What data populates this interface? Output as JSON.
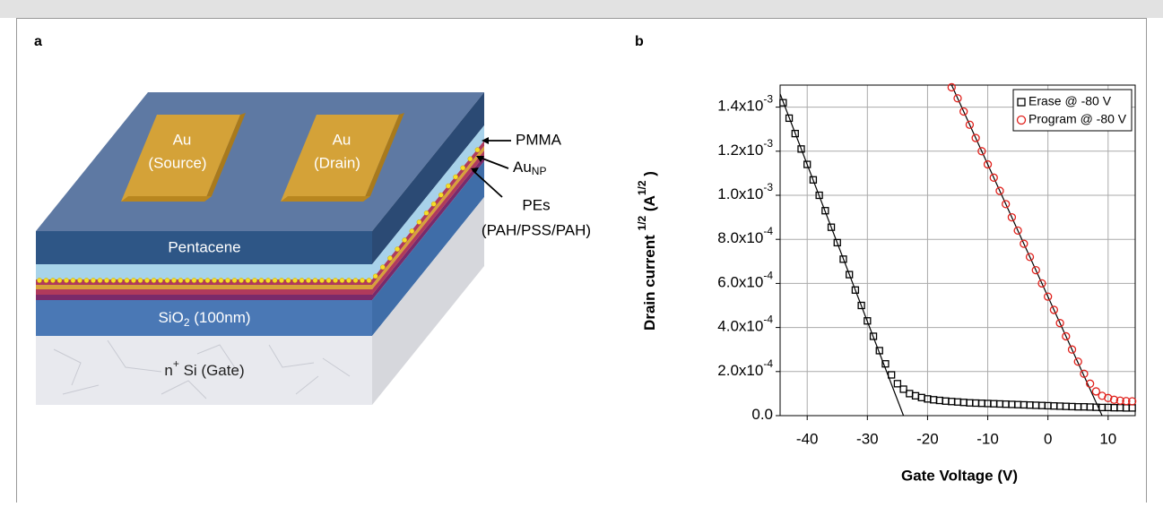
{
  "diagram": {
    "panel_label": "a",
    "source": [
      "Au",
      "(Source)"
    ],
    "drain": [
      "Au",
      "(Drain)"
    ],
    "pentacene": "Pentacene",
    "sio2": {
      "text": "SiO",
      "sub": "2",
      "rest": " (100nm)"
    },
    "gate": {
      "text": "n",
      "sup": "+",
      "rest": " Si (Gate)"
    },
    "pmma": "PMMA",
    "au_np": {
      "text": "Au",
      "sub": "NP"
    },
    "pes": [
      "PEs",
      "(PAH/PSS/PAH)"
    ]
  },
  "chart_data": {
    "type": "scatter",
    "panel_label": "b",
    "xlabel": "Gate Voltage (V)",
    "ylabel": {
      "text": "Drain current ",
      "sup": "1/2",
      "unit": " (A",
      "unit_sup": "1/2",
      "close": " )"
    },
    "xlim": [
      -44.5,
      14.5
    ],
    "xticks": [
      -40,
      -30,
      -20,
      -10,
      0,
      10
    ],
    "ylim": [
      0,
      0.0015
    ],
    "yticks": [
      {
        "value": 0,
        "label": "0.0"
      },
      {
        "value": 0.0002,
        "label": "2.0x10",
        "exponent": "-4"
      },
      {
        "value": 0.0004,
        "label": "4.0x10",
        "exponent": "-4"
      },
      {
        "value": 0.0006,
        "label": "6.0x10",
        "exponent": "-4"
      },
      {
        "value": 0.0008,
        "label": "8.0x10",
        "exponent": "-4"
      },
      {
        "value": 0.001,
        "label": "1.0x10",
        "exponent": "-3"
      },
      {
        "value": 0.0012,
        "label": "1.2x10",
        "exponent": "-3"
      },
      {
        "value": 0.0014,
        "label": "1.4x10",
        "exponent": "-3"
      }
    ],
    "grid": true,
    "legend": "upper right",
    "series": [
      {
        "name": "Erase @ -80 V",
        "color": "#000000",
        "marker": "square",
        "x": [
          -44,
          -43,
          -42,
          -41,
          -40,
          -39,
          -38,
          -37,
          -36,
          -35,
          -34,
          -33,
          -32,
          -31,
          -30,
          -29,
          -28,
          -27,
          -26,
          -25,
          -24,
          -23,
          -22,
          -21,
          -20,
          -19,
          -18,
          -17,
          -16,
          -15,
          -14,
          -13,
          -12,
          -11,
          -10,
          -9,
          -8,
          -7,
          -6,
          -5,
          -4,
          -3,
          -2,
          -1,
          0,
          1,
          2,
          3,
          4,
          5,
          6,
          7,
          8,
          9,
          10,
          11,
          12,
          13,
          14
        ],
        "values": [
          0.00142,
          0.00135,
          0.00128,
          0.00121,
          0.00114,
          0.00107,
          0.001,
          0.00093,
          0.000855,
          0.000785,
          0.00071,
          0.00064,
          0.00057,
          0.0005,
          0.00043,
          0.00036,
          0.000295,
          0.000235,
          0.000185,
          0.000145,
          0.00012,
          0.0001,
          9e-05,
          8.2e-05,
          7.6e-05,
          7.2e-05,
          6.9e-05,
          6.6e-05,
          6.4e-05,
          6.2e-05,
          6e-05,
          5.8e-05,
          5.7e-05,
          5.6e-05,
          5.5e-05,
          5.4e-05,
          5.3e-05,
          5.2e-05,
          5.1e-05,
          5e-05,
          4.9e-05,
          4.8e-05,
          4.7e-05,
          4.6e-05,
          4.5e-05,
          4.4e-05,
          4.3e-05,
          4.2e-05,
          4.1e-05,
          4e-05,
          4e-05,
          3.9e-05,
          3.8e-05,
          3.7e-05,
          3.7e-05,
          3.6e-05,
          3.6e-05,
          3.5e-05,
          3.5e-05
        ]
      },
      {
        "name": "Program @ -80 V",
        "color": "#e0201b",
        "marker": "circle",
        "x": [
          -16,
          -15,
          -14,
          -13,
          -12,
          -11,
          -10,
          -9,
          -8,
          -7,
          -6,
          -5,
          -4,
          -3,
          -2,
          -1,
          0,
          1,
          2,
          3,
          4,
          5,
          6,
          7,
          8,
          9,
          10,
          11,
          12,
          13,
          14
        ],
        "values": [
          0.00149,
          0.00144,
          0.00138,
          0.00132,
          0.00126,
          0.0012,
          0.00114,
          0.00108,
          0.00102,
          0.00096,
          0.0009,
          0.00084,
          0.00078,
          0.00072,
          0.00066,
          0.0006,
          0.00054,
          0.00048,
          0.00042,
          0.00036,
          0.0003,
          0.000245,
          0.00019,
          0.000145,
          0.00011,
          9e-05,
          8e-05,
          7.2e-05,
          6.8e-05,
          6.6e-05,
          6.5e-05
        ]
      }
    ],
    "fit_lines": [
      {
        "x": [
          -44.5,
          -24
        ],
        "values": [
          0.00146,
          0
        ]
      },
      {
        "x": [
          -16,
          9
        ],
        "values": [
          0.0015,
          0
        ]
      }
    ]
  }
}
